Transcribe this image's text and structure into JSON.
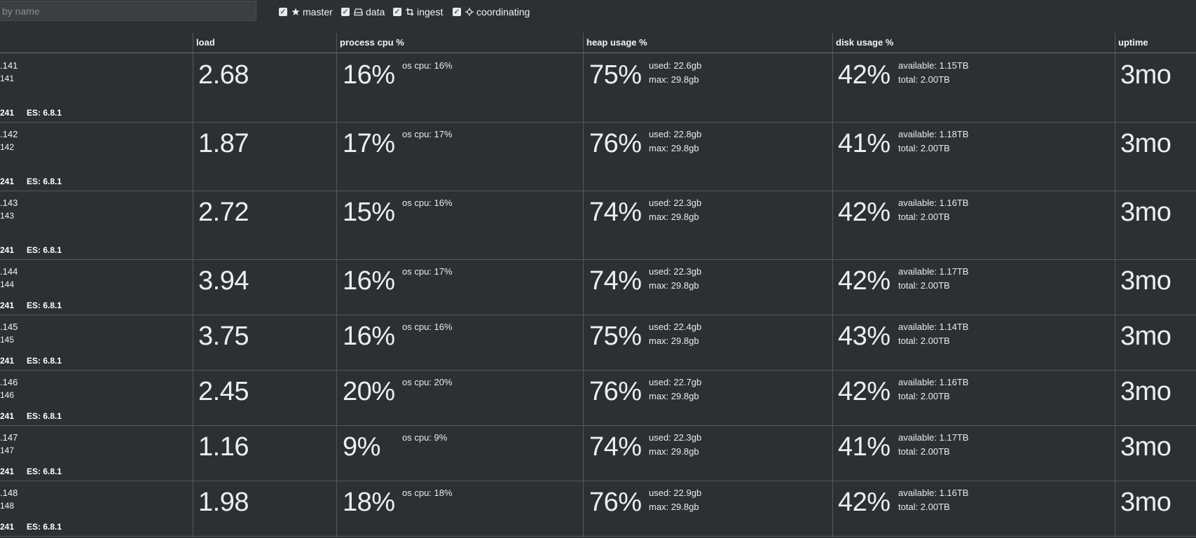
{
  "search": {
    "placeholder": "by name"
  },
  "filters": [
    {
      "label": "master",
      "icon": "star-icon",
      "checked": true
    },
    {
      "label": "data",
      "icon": "drive-icon",
      "checked": true
    },
    {
      "label": "ingest",
      "icon": "crop-icon",
      "checked": true
    },
    {
      "label": "coordinating",
      "icon": "crosshair-icon",
      "checked": true
    }
  ],
  "columns": {
    "load": "load",
    "cpu": "process cpu %",
    "heap": "heap usage %",
    "disk": "disk usage %",
    "uptime": "uptime"
  },
  "rows": [
    {
      "name1": ".141",
      "name2": "141",
      "id": "241",
      "version": "ES: 6.8.1",
      "load": "2.68",
      "cpu": "16%",
      "os_cpu": "os cpu: 16%",
      "heap": "75%",
      "heap_used": "used: 22.6gb",
      "heap_max": "max: 29.8gb",
      "disk": "42%",
      "disk_avail": "available: 1.15TB",
      "disk_total": "total: 2.00TB",
      "uptime": "3mo"
    },
    {
      "name1": ".142",
      "name2": "142",
      "id": "241",
      "version": "ES: 6.8.1",
      "load": "1.87",
      "cpu": "17%",
      "os_cpu": "os cpu: 17%",
      "heap": "76%",
      "heap_used": "used: 22.8gb",
      "heap_max": "max: 29.8gb",
      "disk": "41%",
      "disk_avail": "available: 1.18TB",
      "disk_total": "total: 2.00TB",
      "uptime": "3mo"
    },
    {
      "name1": ".143",
      "name2": "143",
      "id": "241",
      "version": "ES: 6.8.1",
      "load": "2.72",
      "cpu": "15%",
      "os_cpu": "os cpu: 16%",
      "heap": "74%",
      "heap_used": "used: 22.3gb",
      "heap_max": "max: 29.8gb",
      "disk": "42%",
      "disk_avail": "available: 1.16TB",
      "disk_total": "total: 2.00TB",
      "uptime": "3mo"
    },
    {
      "name1": ".144",
      "name2": "144",
      "id": "241",
      "version": "ES: 6.8.1",
      "load": "3.94",
      "cpu": "16%",
      "os_cpu": "os cpu: 17%",
      "heap": "74%",
      "heap_used": "used: 22.3gb",
      "heap_max": "max: 29.8gb",
      "disk": "42%",
      "disk_avail": "available: 1.17TB",
      "disk_total": "total: 2.00TB",
      "uptime": "3mo"
    },
    {
      "name1": ".145",
      "name2": "145",
      "id": "241",
      "version": "ES: 6.8.1",
      "load": "3.75",
      "cpu": "16%",
      "os_cpu": "os cpu: 16%",
      "heap": "75%",
      "heap_used": "used: 22.4gb",
      "heap_max": "max: 29.8gb",
      "disk": "43%",
      "disk_avail": "available: 1.14TB",
      "disk_total": "total: 2.00TB",
      "uptime": "3mo"
    },
    {
      "name1": ".146",
      "name2": "146",
      "id": "241",
      "version": "ES: 6.8.1",
      "load": "2.45",
      "cpu": "20%",
      "os_cpu": "os cpu: 20%",
      "heap": "76%",
      "heap_used": "used: 22.7gb",
      "heap_max": "max: 29.8gb",
      "disk": "42%",
      "disk_avail": "available: 1.16TB",
      "disk_total": "total: 2.00TB",
      "uptime": "3mo"
    },
    {
      "name1": ".147",
      "name2": "147",
      "id": "241",
      "version": "ES: 6.8.1",
      "load": "1.16",
      "cpu": "9%",
      "os_cpu": "os cpu: 9%",
      "heap": "74%",
      "heap_used": "used: 22.3gb",
      "heap_max": "max: 29.8gb",
      "disk": "41%",
      "disk_avail": "available: 1.17TB",
      "disk_total": "total: 2.00TB",
      "uptime": "3mo"
    },
    {
      "name1": ".148",
      "name2": "148",
      "id": "241",
      "version": "ES: 6.8.1",
      "load": "1.98",
      "cpu": "18%",
      "os_cpu": "os cpu: 18%",
      "heap": "76%",
      "heap_used": "used: 22.9gb",
      "heap_max": "max: 29.8gb",
      "disk": "42%",
      "disk_avail": "available: 1.16TB",
      "disk_total": "total: 2.00TB",
      "uptime": "3mo"
    }
  ]
}
